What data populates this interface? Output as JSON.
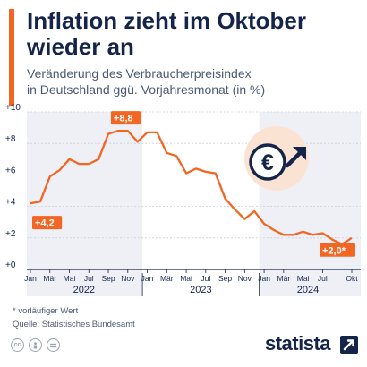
{
  "header": {
    "title": "Inflation zieht im Oktober wieder an",
    "subtitle_lines": [
      "Veränderung des Verbraucherpreisindex",
      "in Deutschland ggü. Vorjahresmonat (in %)"
    ]
  },
  "icon": {
    "name": "euro-rising-icon"
  },
  "footer": {
    "note": "* vorläufiger Wert",
    "source": "Quelle: Statistisches Bundesamt",
    "brand": "statista",
    "license_icons": [
      "cc-icon",
      "person-icon",
      "equals-icon"
    ]
  },
  "colors": {
    "line": "#f26522",
    "label_bg": "#f26522",
    "shade": "#eef0f6",
    "title": "#15254a",
    "icon_bg": "#fbe3d4"
  },
  "chart_data": {
    "type": "line",
    "title": "Inflation zieht im Oktober wieder an",
    "ylabel": "",
    "xlabel": "",
    "ylim": [
      0,
      10
    ],
    "y_ticks": [
      0,
      2,
      4,
      6,
      8,
      10
    ],
    "y_tick_labels": [
      "+0",
      "+2",
      "+4",
      "+6",
      "+8",
      "+10"
    ],
    "x_tick_labels": [
      "Jan",
      "Mär",
      "Mai",
      "Jul",
      "Sep",
      "Nov",
      "Jan",
      "Mär",
      "Mai",
      "Jul",
      "Sep",
      "Nov",
      "Jan",
      "Mär",
      "Mai",
      "Jul",
      "Okt"
    ],
    "x_tick_months": [
      "2022-01",
      "2022-03",
      "2022-05",
      "2022-07",
      "2022-09",
      "2022-11",
      "2023-01",
      "2023-03",
      "2023-05",
      "2023-07",
      "2023-09",
      "2023-11",
      "2024-01",
      "2024-03",
      "2024-05",
      "2024-07",
      "2024-10"
    ],
    "years": [
      {
        "label": "2022",
        "start": "2022-01",
        "end": "2022-12",
        "shaded": true
      },
      {
        "label": "2023",
        "start": "2023-01",
        "end": "2023-12",
        "shaded": false
      },
      {
        "label": "2024",
        "start": "2024-01",
        "end": "2024-10",
        "shaded": true
      }
    ],
    "grid": true,
    "series": [
      {
        "x": [
          "2022-01",
          "2022-02",
          "2022-03",
          "2022-04",
          "2022-05",
          "2022-06",
          "2022-07",
          "2022-08",
          "2022-09",
          "2022-10",
          "2022-11",
          "2022-12",
          "2023-01",
          "2023-02",
          "2023-03",
          "2023-04",
          "2023-05",
          "2023-06",
          "2023-07",
          "2023-08",
          "2023-09",
          "2023-10",
          "2023-11",
          "2023-12",
          "2024-01",
          "2024-02",
          "2024-03",
          "2024-04",
          "2024-05",
          "2024-06",
          "2024-07",
          "2024-08",
          "2024-09",
          "2024-10"
        ],
        "values": [
          4.2,
          4.3,
          5.9,
          6.3,
          7.0,
          6.7,
          6.7,
          7.0,
          8.6,
          8.8,
          8.8,
          8.1,
          8.7,
          8.7,
          7.4,
          7.2,
          6.1,
          6.4,
          6.2,
          6.1,
          4.5,
          3.8,
          3.2,
          3.7,
          2.9,
          2.5,
          2.2,
          2.2,
          2.4,
          2.2,
          2.3,
          1.9,
          1.6,
          2.0
        ]
      }
    ],
    "annotations": [
      {
        "x": "2022-01",
        "y": 4.2,
        "text": "+4,2"
      },
      {
        "x": "2022-10",
        "y": 8.8,
        "text": "+8,8"
      },
      {
        "x": "2024-10",
        "y": 2.0,
        "text": "+2,0*"
      }
    ]
  }
}
